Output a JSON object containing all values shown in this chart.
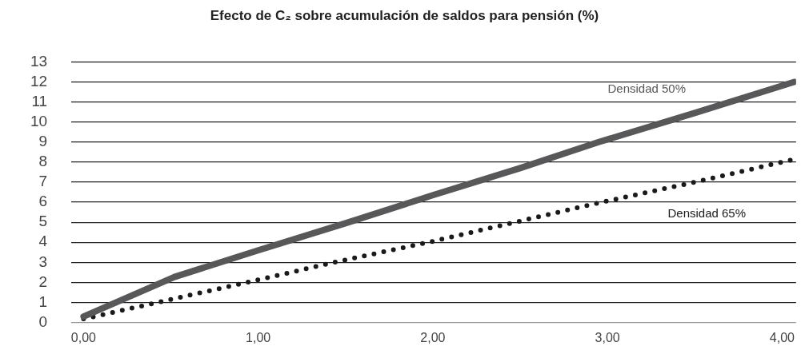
{
  "chart_data": {
    "type": "line",
    "title": "Efecto de C₂ sobre acumulación de saldos para pensión (%)",
    "series": [
      {
        "name": "Densidad 50%",
        "color": "#58585a",
        "line_style": "solid",
        "x": [
          0,
          0.52,
          1,
          1.5,
          2,
          2.5,
          2.95,
          3.5,
          4.07
        ],
        "values": [
          0.3,
          2.27,
          3.6,
          4.95,
          6.35,
          7.7,
          9.0,
          10.45,
          12.0
        ]
      },
      {
        "name": "Densidad 65%",
        "color": "#1a1a1a",
        "line_style": "dotted",
        "x": [
          0,
          0.5,
          0.96,
          1.44,
          2,
          2.48,
          2.96,
          3.5,
          4.07
        ],
        "values": [
          0.18,
          1.15,
          2.05,
          3.01,
          4.05,
          5.02,
          5.99,
          7.0,
          8.14
        ]
      }
    ],
    "xlim": [
      -0.07,
      4.08
    ],
    "xticks": [
      {
        "value": 0,
        "label": "0,00"
      },
      {
        "value": 1,
        "label": "1,00"
      },
      {
        "value": 2,
        "label": "2,00"
      },
      {
        "value": 3,
        "label": "3,00"
      },
      {
        "value": 4,
        "label": "4,00"
      }
    ],
    "ylim": [
      0,
      13
    ],
    "yticks": [
      0,
      1,
      2,
      3,
      4,
      5,
      6,
      7,
      8,
      9,
      10,
      11,
      12,
      13
    ],
    "grid": "y",
    "legend": false,
    "marker": "none"
  }
}
